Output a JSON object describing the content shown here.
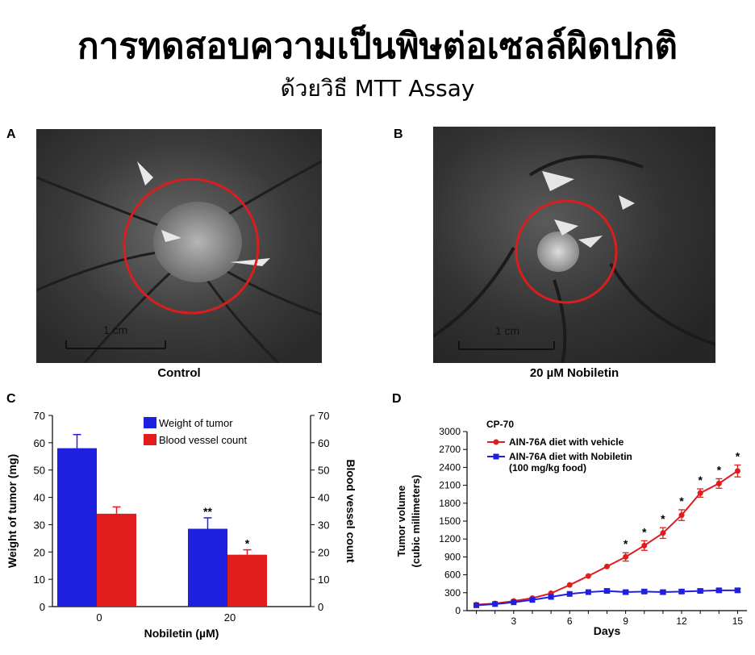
{
  "header": {
    "title": "การทดสอบความเป็นพิษต่อเซลล์ผิดปกติ",
    "subtitle": "ด้วยวิธี MTT Assay"
  },
  "panels": {
    "a": {
      "letter": "A",
      "caption": "Control",
      "scale_label": "1 cm"
    },
    "b": {
      "letter": "B",
      "caption": "20 µM Nobiletin",
      "scale_label": "1 cm"
    },
    "c": {
      "letter": "C"
    },
    "d": {
      "letter": "D"
    }
  },
  "colors": {
    "blue": "#1f1fe0",
    "red": "#e01c1c",
    "circle": "#d81e1e"
  },
  "chart_data": [
    {
      "type": "bar",
      "categories": [
        "0",
        "20"
      ],
      "series": [
        {
          "name": "Weight of tumor",
          "values": [
            58,
            28.5
          ],
          "errors": [
            5,
            4
          ],
          "color": "#1f1fe0",
          "annotations": [
            "",
            "**"
          ]
        },
        {
          "name": "Blood vessel count",
          "values": [
            34,
            19
          ],
          "errors": [
            2.5,
            1.8
          ],
          "color": "#e01c1c",
          "annotations": [
            "",
            "*"
          ]
        }
      ],
      "xlabel": "Nobiletin (µM)",
      "ylabel": "Weight of tumor (mg)",
      "y2label": "Blood vessel count",
      "ylim": [
        0,
        70
      ],
      "yticks": [
        0,
        10,
        20,
        30,
        40,
        50,
        60,
        70
      ],
      "legend": "top-center"
    },
    {
      "type": "line",
      "title": "CP-70",
      "x": [
        1,
        2,
        3,
        4,
        5,
        6,
        7,
        8,
        9,
        10,
        11,
        12,
        13,
        14,
        15
      ],
      "series": [
        {
          "name": "AIN-76A diet with vehicle",
          "values": [
            100,
            120,
            160,
            210,
            290,
            430,
            580,
            740,
            900,
            1090,
            1300,
            1600,
            1970,
            2130,
            2340
          ],
          "errors": [
            0,
            0,
            0,
            0,
            0,
            0,
            0,
            0,
            70,
            80,
            90,
            90,
            70,
            80,
            100
          ],
          "marker": "circle",
          "color": "#e01c1c",
          "significant": [
            9,
            10,
            11,
            12,
            13,
            14,
            15
          ]
        },
        {
          "name": "AIN-76A diet with Nobiletin (100 mg/kg food)",
          "legend_lines": [
            "AIN-76A diet with Nobiletin",
            "(100 mg/kg food)"
          ],
          "values": [
            90,
            110,
            140,
            180,
            230,
            280,
            310,
            330,
            310,
            320,
            310,
            320,
            330,
            340,
            340
          ],
          "errors": [
            0,
            0,
            0,
            0,
            0,
            0,
            0,
            30,
            30,
            30,
            30,
            30,
            30,
            30,
            30
          ],
          "marker": "square",
          "color": "#1f1fe0"
        }
      ],
      "significance_marker": "*",
      "xlabel": "Days",
      "ylabel": "Tumor volume",
      "ylabel2": "(cubic millimeters)",
      "xticks": [
        3,
        6,
        9,
        12,
        15
      ],
      "xlim": [
        0.5,
        15.5
      ],
      "ylim": [
        0,
        3000
      ],
      "yticks": [
        0,
        300,
        600,
        900,
        1200,
        1500,
        1800,
        2100,
        2400,
        2700,
        3000
      ],
      "legend": "top-left"
    }
  ]
}
